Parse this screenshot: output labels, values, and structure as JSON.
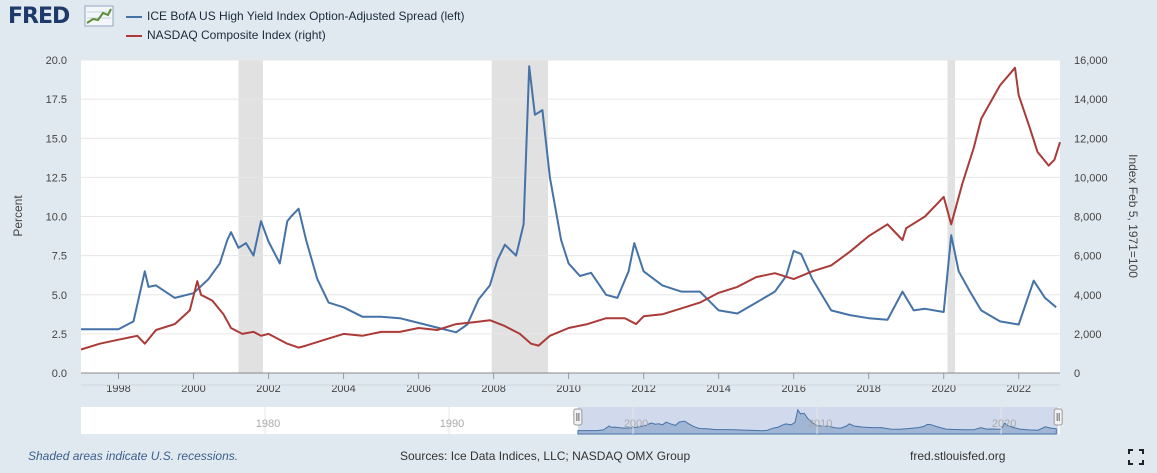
{
  "logo": {
    "text": "FRED"
  },
  "chart_data": {
    "type": "line",
    "legend_position": "top-left",
    "grid": true,
    "x_ticks": [
      "1998",
      "2000",
      "2002",
      "2004",
      "2006",
      "2008",
      "2010",
      "2012",
      "2014",
      "2016",
      "2018",
      "2020",
      "2022"
    ],
    "xlim": [
      1997.0,
      2023.1
    ],
    "left_axis": {
      "label": "Percent",
      "ylim": [
        0,
        20
      ],
      "ticks": [
        "0.0",
        "2.5",
        "5.0",
        "7.5",
        "10.0",
        "12.5",
        "15.0",
        "17.5",
        "20.0"
      ]
    },
    "right_axis": {
      "label": "Index Feb 5, 1971=100",
      "ylim": [
        0,
        16000
      ],
      "ticks": [
        "0",
        "2,000",
        "4,000",
        "6,000",
        "8,000",
        "10,000",
        "12,000",
        "14,000",
        "16,000"
      ]
    },
    "recessions": [
      [
        2001.2,
        2001.85
      ],
      [
        2007.95,
        2009.45
      ],
      [
        2020.1,
        2020.3
      ]
    ],
    "series": [
      {
        "name": "ICE BofA US High Yield Index Option-Adjusted Spread (left)",
        "axis": "left",
        "color": "#4572a7",
        "x": [
          1997.0,
          1997.5,
          1998.0,
          1998.4,
          1998.7,
          1998.8,
          1999.0,
          1999.5,
          2000.0,
          2000.4,
          2000.7,
          2000.9,
          2001.0,
          2001.2,
          2001.4,
          2001.6,
          2001.8,
          2002.0,
          2002.3,
          2002.5,
          2002.6,
          2002.8,
          2003.0,
          2003.3,
          2003.6,
          2004.0,
          2004.5,
          2005.0,
          2005.5,
          2006.0,
          2006.5,
          2007.0,
          2007.3,
          2007.6,
          2007.9,
          2008.1,
          2008.3,
          2008.6,
          2008.8,
          2008.95,
          2009.1,
          2009.3,
          2009.5,
          2009.8,
          2010.0,
          2010.3,
          2010.6,
          2011.0,
          2011.3,
          2011.6,
          2011.75,
          2012.0,
          2012.5,
          2013.0,
          2013.5,
          2014.0,
          2014.5,
          2015.0,
          2015.5,
          2015.8,
          2016.0,
          2016.2,
          2016.5,
          2017.0,
          2017.5,
          2018.0,
          2018.5,
          2018.9,
          2019.2,
          2019.5,
          2020.0,
          2020.2,
          2020.4,
          2020.7,
          2021.0,
          2021.5,
          2022.0,
          2022.4,
          2022.7,
          2023.0
        ],
        "y": [
          2.8,
          2.8,
          2.8,
          3.3,
          6.5,
          5.5,
          5.6,
          4.8,
          5.1,
          6.0,
          7.0,
          8.5,
          9.0,
          8.0,
          8.3,
          7.5,
          9.7,
          8.4,
          7.0,
          9.7,
          10.0,
          10.5,
          8.5,
          6.0,
          4.5,
          4.2,
          3.6,
          3.6,
          3.5,
          3.2,
          2.9,
          2.6,
          3.1,
          4.7,
          5.6,
          7.2,
          8.2,
          7.5,
          9.5,
          19.6,
          16.5,
          16.8,
          12.5,
          8.5,
          7.0,
          6.2,
          6.4,
          5.0,
          4.8,
          6.5,
          8.3,
          6.5,
          5.6,
          5.2,
          5.2,
          4.0,
          3.8,
          4.5,
          5.2,
          6.2,
          7.8,
          7.6,
          6.0,
          4.0,
          3.7,
          3.5,
          3.4,
          5.2,
          4.0,
          4.1,
          3.9,
          8.8,
          6.5,
          5.2,
          4.0,
          3.3,
          3.1,
          5.9,
          4.8,
          4.2
        ]
      },
      {
        "name": "NASDAQ Composite Index (right)",
        "axis": "right",
        "color": "#aa3b38",
        "x": [
          1997.0,
          1997.5,
          1998.0,
          1998.5,
          1998.7,
          1999.0,
          1999.5,
          1999.9,
          2000.1,
          2000.2,
          2000.5,
          2000.8,
          2001.0,
          2001.3,
          2001.6,
          2001.8,
          2002.0,
          2002.5,
          2002.8,
          2003.0,
          2003.5,
          2004.0,
          2004.5,
          2005.0,
          2005.5,
          2006.0,
          2006.5,
          2007.0,
          2007.5,
          2007.9,
          2008.3,
          2008.7,
          2009.0,
          2009.2,
          2009.5,
          2010.0,
          2010.5,
          2011.0,
          2011.5,
          2011.8,
          2012.0,
          2012.5,
          2013.0,
          2013.5,
          2014.0,
          2014.5,
          2015.0,
          2015.5,
          2016.0,
          2016.5,
          2017.0,
          2017.5,
          2018.0,
          2018.5,
          2018.9,
          2019.0,
          2019.5,
          2020.0,
          2020.2,
          2020.5,
          2020.8,
          2021.0,
          2021.5,
          2021.9,
          2022.0,
          2022.3,
          2022.5,
          2022.8,
          2022.95,
          2023.1
        ],
        "y": [
          1200,
          1500,
          1700,
          1900,
          1500,
          2200,
          2500,
          3200,
          4700,
          4000,
          3700,
          3000,
          2300,
          2000,
          2100,
          1900,
          2000,
          1500,
          1300,
          1400,
          1700,
          2000,
          1900,
          2100,
          2100,
          2300,
          2200,
          2500,
          2600,
          2700,
          2400,
          2000,
          1500,
          1400,
          1900,
          2300,
          2500,
          2800,
          2800,
          2500,
          2900,
          3000,
          3300,
          3600,
          4100,
          4400,
          4900,
          5100,
          4800,
          5200,
          5500,
          6200,
          7000,
          7600,
          6800,
          7400,
          8000,
          9000,
          7600,
          9700,
          11500,
          13000,
          14700,
          15600,
          14200,
          12500,
          11300,
          10600,
          10900,
          11800
        ]
      }
    ],
    "navigator": {
      "tick_labels": [
        "1980",
        "1990",
        "2000",
        "2010",
        "2020"
      ]
    }
  },
  "footer": {
    "note": "Shaded areas indicate U.S. recessions.",
    "sources": "Sources: Ice Data Indices, LLC; NASDAQ OMX Group",
    "site": "fred.stlouisfed.org"
  },
  "icons": {
    "expand": "fullscreen-icon",
    "logo_graph": "fred-graph-icon"
  }
}
